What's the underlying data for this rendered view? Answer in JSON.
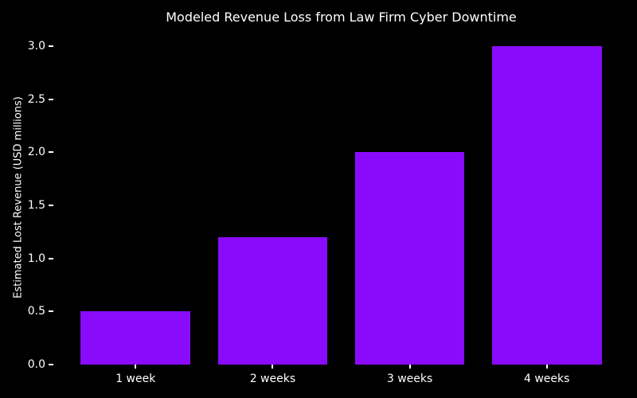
{
  "chart_data": {
    "type": "bar",
    "title": "Modeled Revenue Loss from Law Firm Cyber Downtime",
    "categories": [
      "1 week",
      "2 weeks",
      "3 weeks",
      "4 weeks"
    ],
    "values": [
      0.5,
      1.2,
      2.0,
      3.0
    ],
    "xlabel": "",
    "ylabel": "Estimated Lost Revenue (USD millions)",
    "ylim": [
      0,
      3.15
    ],
    "yticks": [
      0.0,
      0.5,
      1.0,
      1.5,
      2.0,
      2.5,
      3.0
    ],
    "grid": false,
    "legend": null,
    "bar_width_fraction": 0.8,
    "colors": {
      "background": "#000000",
      "text": "#ffffff",
      "tick": "#ffffff",
      "bar": "#8A0BFB"
    }
  }
}
